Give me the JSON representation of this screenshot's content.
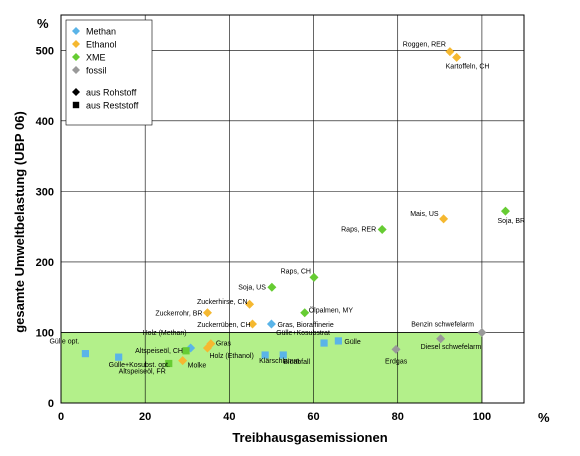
{
  "chart_data": {
    "type": "scatter",
    "ylabel": "gesamte Umweltbelastung (UBP 06)",
    "xlabel": "Treibhausgasemissionen",
    "y_unit_label": "%",
    "x_unit_label": "%",
    "xlim": [
      0,
      110
    ],
    "ylim": [
      0,
      550
    ],
    "xticks": [
      0,
      20,
      40,
      60,
      80,
      100
    ],
    "yticks": [
      0,
      100,
      200,
      300,
      400,
      500
    ],
    "grid": true,
    "reference_region": {
      "x": [
        0,
        100
      ],
      "y": [
        0,
        100
      ],
      "color": "#b3f08a"
    },
    "legend": {
      "position": "top-left",
      "items": [
        {
          "label": "Methan",
          "color": "#5ab4e8",
          "marker": "diamond"
        },
        {
          "label": "Ethanol",
          "color": "#f5b830",
          "marker": "diamond"
        },
        {
          "label": "XME",
          "color": "#66cc33",
          "marker": "diamond"
        },
        {
          "label": "fossil",
          "color": "#999999",
          "marker": "diamond"
        },
        {
          "label": "aus Rohstoff",
          "color": "#000000",
          "marker": "diamond"
        },
        {
          "label": "aus Reststoff",
          "color": "#000000",
          "marker": "square"
        }
      ]
    },
    "series": [
      {
        "name": "Methan",
        "color": "#5ab4e8",
        "points": [
          {
            "label": "Gülle opt.",
            "x": 5.8,
            "y": 70,
            "marker": "square"
          },
          {
            "label": "Gülle+Kosubst. opt.",
            "x": 13.7,
            "y": 65,
            "marker": "square"
          },
          {
            "label": "Holz (Methan)",
            "x": 30.8,
            "y": 78,
            "marker": "diamond"
          },
          {
            "label": "Gras, Bioraffinerie",
            "x": 50,
            "y": 112,
            "marker": "diamond"
          },
          {
            "label": "Klärschlamm",
            "x": 48.5,
            "y": 68,
            "marker": "square"
          },
          {
            "label": "Bioabfall",
            "x": 52.8,
            "y": 68,
            "marker": "square"
          },
          {
            "label": "Gülle+Kosubstrat",
            "x": 62.5,
            "y": 85,
            "marker": "square"
          },
          {
            "label": "Gülle",
            "x": 65.9,
            "y": 88,
            "marker": "square"
          }
        ]
      },
      {
        "name": "Ethanol",
        "color": "#f5b830",
        "points": [
          {
            "label": "Roggen, RER",
            "x": 92.4,
            "y": 498,
            "marker": "diamond"
          },
          {
            "label": "Kartoffeln, CH",
            "x": 94,
            "y": 490,
            "marker": "diamond"
          },
          {
            "label": "Mais, US",
            "x": 90.9,
            "y": 261,
            "marker": "diamond"
          },
          {
            "label": "Zuckerhirse, CN",
            "x": 44.8,
            "y": 140,
            "marker": "diamond"
          },
          {
            "label": "Zuckerrohr, BR",
            "x": 34.8,
            "y": 128,
            "marker": "diamond"
          },
          {
            "label": "Zuckerrüben, CH",
            "x": 45.5,
            "y": 112,
            "marker": "diamond"
          },
          {
            "label": "Holz (Ethanol)",
            "x": 34.8,
            "y": 78,
            "marker": "diamond"
          },
          {
            "label": "Gras",
            "x": 35.6,
            "y": 84,
            "marker": "diamond"
          },
          {
            "label": "Molke",
            "x": 28.9,
            "y": 60,
            "marker": "diamond"
          }
        ]
      },
      {
        "name": "XME",
        "color": "#66cc33",
        "points": [
          {
            "label": "Soja, BR",
            "x": 105.6,
            "y": 272,
            "marker": "diamond"
          },
          {
            "label": "Raps, RER",
            "x": 76.3,
            "y": 246,
            "marker": "diamond"
          },
          {
            "label": "Raps, CH",
            "x": 60.1,
            "y": 178,
            "marker": "diamond"
          },
          {
            "label": "Soja, US",
            "x": 50.1,
            "y": 164,
            "marker": "diamond"
          },
          {
            "label": "Ölpalmen, MY",
            "x": 57.9,
            "y": 128,
            "marker": "diamond"
          },
          {
            "label": "Altspeiseöl, CH",
            "x": 29.7,
            "y": 74,
            "marker": "square"
          },
          {
            "label": "Altspeiseöl, FR",
            "x": 25.6,
            "y": 56,
            "marker": "square"
          }
        ]
      },
      {
        "name": "fossil",
        "color": "#999999",
        "points": [
          {
            "label": "Benzin schwefelarm",
            "x": 100,
            "y": 100,
            "marker": "diamond"
          },
          {
            "label": "Diesel schwefelarm",
            "x": 90.2,
            "y": 91,
            "marker": "diamond"
          },
          {
            "label": "Erdgas",
            "x": 79.6,
            "y": 76,
            "marker": "diamond"
          }
        ]
      }
    ]
  }
}
